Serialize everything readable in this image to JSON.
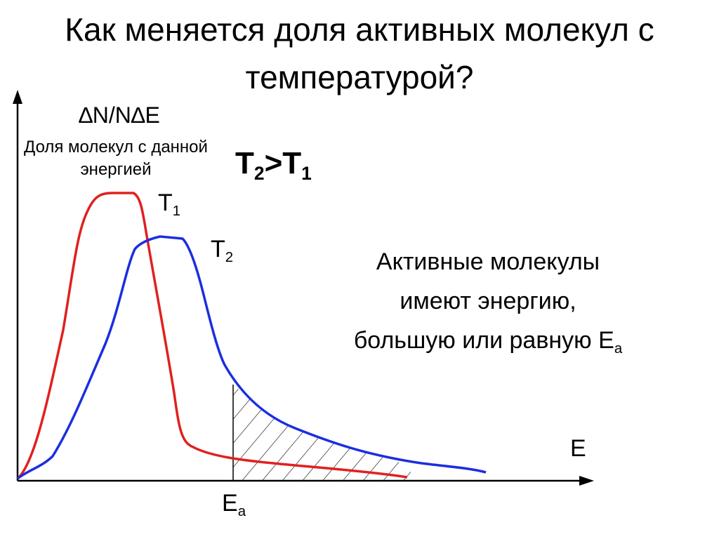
{
  "title": "Как меняется доля активных молекул с температурой?",
  "y_axis": {
    "symbol": "∆N/N∆E",
    "label": "Доля молекул с данной энергией"
  },
  "x_axis": {
    "label": "E"
  },
  "condition": {
    "left": {
      "base": "T",
      "sub": "2"
    },
    "operator": ">",
    "right": {
      "base": "T",
      "sub": "1"
    }
  },
  "curves": [
    {
      "label": {
        "base": "T",
        "sub": "1"
      }
    },
    {
      "label": {
        "base": "T",
        "sub": "2"
      }
    }
  ],
  "activation_marker": {
    "base": "E",
    "sub": "a"
  },
  "note": {
    "lines": [
      "Активные молекулы",
      "имеют энергию,",
      "большую или равную"
    ],
    "symbol": {
      "base": "E",
      "sub": "a"
    }
  }
}
